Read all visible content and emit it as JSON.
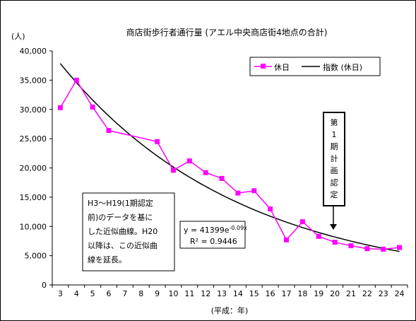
{
  "chart_data": {
    "type": "line",
    "title": "商店街歩行者通行量 (アエル中央商店街4地点の合計)",
    "ylabel": "(人)",
    "xlabel": "(平成：年)",
    "ylim": [
      0,
      40000
    ],
    "yticks": [
      "0",
      "5,000",
      "10,000",
      "15,000",
      "20,000",
      "25,000",
      "30,000",
      "35,000",
      "40,000"
    ],
    "x": [
      3,
      4,
      5,
      6,
      7,
      8,
      9,
      10,
      11,
      12,
      13,
      14,
      15,
      16,
      17,
      18,
      19,
      20,
      21,
      22,
      23,
      24
    ],
    "series": [
      {
        "name": "休日",
        "color": "#ff00ff",
        "marker": "square",
        "points": [
          [
            3,
            30300
          ],
          [
            4,
            35000
          ],
          [
            5,
            30400
          ],
          [
            6,
            26400
          ],
          [
            9,
            24500
          ],
          [
            10,
            19600
          ],
          [
            11,
            21200
          ],
          [
            12,
            19200
          ],
          [
            13,
            18200
          ],
          [
            14,
            15700
          ],
          [
            15,
            16100
          ],
          [
            16,
            13000
          ],
          [
            17,
            7700
          ],
          [
            18,
            10800
          ],
          [
            19,
            8300
          ],
          [
            20,
            7300
          ],
          [
            21,
            6700
          ],
          [
            22,
            6200
          ],
          [
            23,
            6100
          ],
          [
            24,
            6400
          ]
        ]
      },
      {
        "name": "指数 (休日)",
        "color": "#000000",
        "type": "exponential-trend",
        "a": 41399,
        "b": -0.09,
        "x_offset": 2
      }
    ],
    "legend_position": "top-right",
    "grid": false
  },
  "legend": {
    "item1": "休日",
    "item2": "指数 (休日)"
  },
  "annotations": {
    "note_lines": [
      "H3～H19(1期認定",
      "前)のデータを基に",
      "した近似曲線。H20",
      "以降は、この近似曲",
      "線を延長。"
    ],
    "equation_prefix": "y = 41399e",
    "equation_exp": "-0.09x",
    "r2": "R² = 0.9446",
    "callout_chars": [
      "第",
      "1",
      "期",
      "計",
      "画",
      "認",
      "定"
    ]
  }
}
